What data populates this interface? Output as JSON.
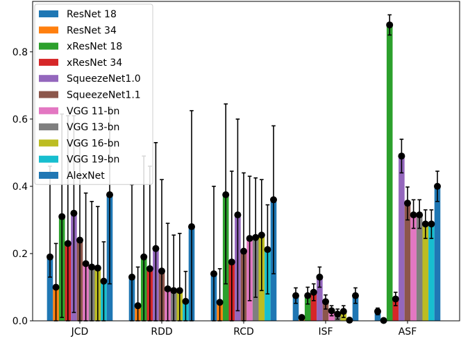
{
  "chart_data": {
    "type": "bar",
    "title": "",
    "xlabel": "",
    "ylabel": "",
    "categories": [
      "JCD",
      "RDD",
      "RCD",
      "ISF",
      "ASF"
    ],
    "ylim": [
      0,
      0.95
    ],
    "yticks": [
      0.0,
      0.2,
      0.4,
      0.6,
      0.8
    ],
    "ytick_labels": [
      "0.0",
      "0.2",
      "0.4",
      "0.6",
      "0.8"
    ],
    "legend_position": "top-left",
    "grid": false,
    "error_bars": true,
    "series": [
      {
        "name": "ResNet 18",
        "color": "#1f77b4",
        "values": [
          0.19,
          0.13,
          0.14,
          0.075,
          0.028
        ],
        "errors": [
          [
            0.13,
            0.46
          ],
          [
            0.0,
            0.405
          ],
          [
            0.0,
            0.4
          ],
          [
            0.052,
            0.098
          ],
          [
            0.018,
            0.038
          ]
        ]
      },
      {
        "name": "ResNet 34",
        "color": "#ff7f0e",
        "values": [
          0.1,
          0.045,
          0.055,
          0.01,
          0.001
        ],
        "errors": [
          [
            0.0,
            0.23
          ],
          [
            0.0,
            0.16
          ],
          [
            0.0,
            0.155
          ],
          [
            0.005,
            0.015
          ],
          [
            0.0,
            0.003
          ]
        ]
      },
      {
        "name": "xResNet 18",
        "color": "#2ca02c",
        "values": [
          0.31,
          0.19,
          0.375,
          0.075,
          0.88
        ],
        "errors": [
          [
            0.01,
            0.615
          ],
          [
            0.0,
            0.49
          ],
          [
            0.11,
            0.645
          ],
          [
            0.05,
            0.1
          ],
          [
            0.85,
            0.91
          ]
        ]
      },
      {
        "name": "xResNet 34",
        "color": "#d62728",
        "values": [
          0.23,
          0.155,
          0.175,
          0.085,
          0.065
        ],
        "errors": [
          [
            0.0,
            0.61
          ],
          [
            0.0,
            0.46
          ],
          [
            0.0,
            0.445
          ],
          [
            0.06,
            0.11
          ],
          [
            0.045,
            0.085
          ]
        ]
      },
      {
        "name": "SqueezeNet1.0",
        "color": "#9467bd",
        "values": [
          0.32,
          0.215,
          0.315,
          0.13,
          0.49
        ],
        "errors": [
          [
            0.025,
            0.61
          ],
          [
            0.0,
            0.53
          ],
          [
            0.03,
            0.6
          ],
          [
            0.1,
            0.16
          ],
          [
            0.44,
            0.54
          ]
        ]
      },
      {
        "name": "SqueezeNet1.1",
        "color": "#8c564b",
        "values": [
          0.24,
          0.148,
          0.207,
          0.057,
          0.35
        ],
        "errors": [
          [
            0.0,
            0.53
          ],
          [
            0.0,
            0.42
          ],
          [
            0.0,
            0.44
          ],
          [
            0.035,
            0.077
          ],
          [
            0.3,
            0.398
          ]
        ]
      },
      {
        "name": "VGG 11-bn",
        "color": "#e377c2",
        "values": [
          0.17,
          0.095,
          0.245,
          0.03,
          0.315
        ],
        "errors": [
          [
            0.0,
            0.38
          ],
          [
            0.0,
            0.29
          ],
          [
            0.06,
            0.43
          ],
          [
            0.015,
            0.045
          ],
          [
            0.275,
            0.36
          ]
        ]
      },
      {
        "name": "VGG 13-bn",
        "color": "#7f7f7f",
        "values": [
          0.16,
          0.09,
          0.248,
          0.02,
          0.315
        ],
        "errors": [
          [
            0.0,
            0.355
          ],
          [
            0.0,
            0.255
          ],
          [
            0.07,
            0.425
          ],
          [
            0.005,
            0.035
          ],
          [
            0.275,
            0.36
          ]
        ]
      },
      {
        "name": "VGG 16-bn",
        "color": "#bcbd22",
        "values": [
          0.157,
          0.09,
          0.255,
          0.028,
          0.288
        ],
        "errors": [
          [
            0.0,
            0.34
          ],
          [
            0.0,
            0.26
          ],
          [
            0.09,
            0.42
          ],
          [
            0.01,
            0.045
          ],
          [
            0.245,
            0.33
          ]
        ]
      },
      {
        "name": "VGG 19-bn",
        "color": "#17becf",
        "values": [
          0.118,
          0.058,
          0.212,
          0.002,
          0.288
        ],
        "errors": [
          [
            0.0,
            0.235
          ],
          [
            0.0,
            0.147
          ],
          [
            0.08,
            0.345
          ],
          [
            0.0,
            0.004
          ],
          [
            0.245,
            0.33
          ]
        ]
      },
      {
        "name": "AlexNet",
        "color": "#1f77b4",
        "values": [
          0.375,
          0.28,
          0.36,
          0.075,
          0.4
        ],
        "errors": [
          [
            0.11,
            0.635
          ],
          [
            0.0,
            0.625
          ],
          [
            0.14,
            0.58
          ],
          [
            0.052,
            0.098
          ],
          [
            0.355,
            0.445
          ]
        ]
      }
    ]
  }
}
